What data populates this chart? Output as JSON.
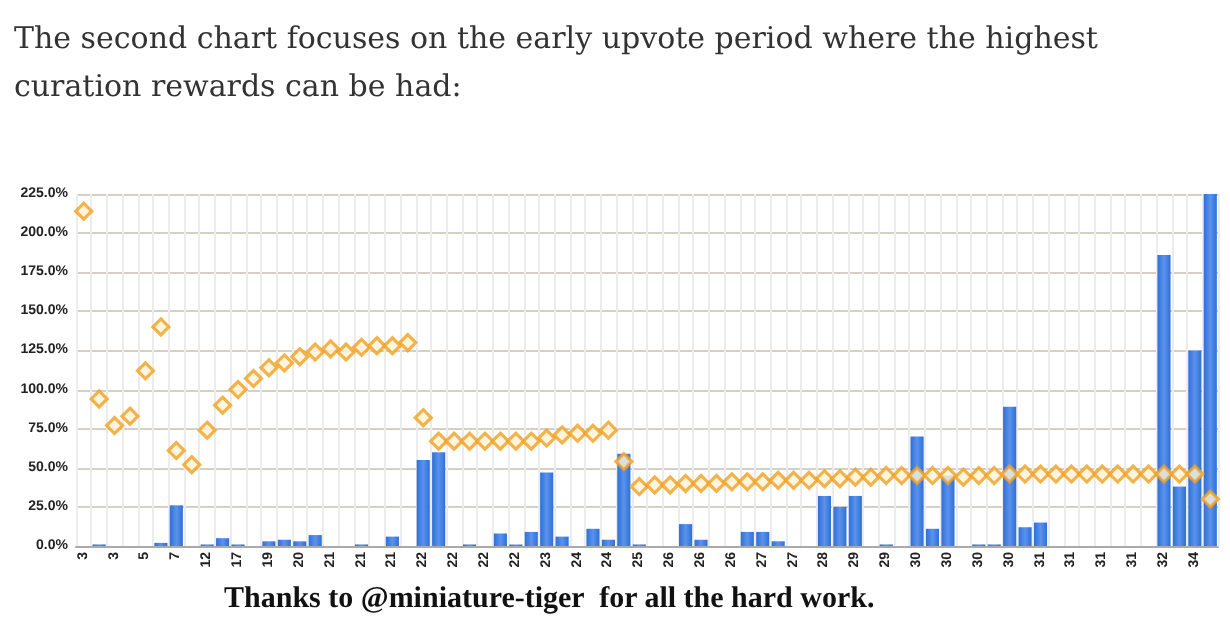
{
  "chart_data": {
    "type": "bar",
    "title": "The second chart focuses on the early upvote period where the highest curation rewards can be had:",
    "annotations": [
      "Thanks to @miniature-tiger  for all the hard work."
    ],
    "categories": [
      "3",
      null,
      "3",
      null,
      "5",
      null,
      "7",
      null,
      "12",
      null,
      "17",
      null,
      "19",
      null,
      "20",
      null,
      "21",
      null,
      "21",
      null,
      "21",
      null,
      "22",
      null,
      "22",
      null,
      "22",
      null,
      "22",
      null,
      "23",
      null,
      "24",
      null,
      "24",
      null,
      "25",
      null,
      "26",
      null,
      "26",
      null,
      "26",
      null,
      "27",
      null,
      "27",
      null,
      "28",
      null,
      "29",
      null,
      "29",
      null,
      "30",
      null,
      "30",
      null,
      "30",
      null,
      "30",
      null,
      "31",
      null,
      "31",
      null,
      "31",
      null,
      "31",
      null,
      "32",
      null,
      "34",
      null
    ],
    "series": [
      {
        "color": "#2e6fd8",
        "values": [
          null,
          1,
          null,
          null,
          null,
          2,
          26,
          null,
          1,
          5,
          1,
          null,
          3,
          4,
          3,
          7,
          null,
          null,
          1,
          null,
          6,
          null,
          55,
          60,
          null,
          1,
          null,
          8,
          1,
          9,
          47,
          6,
          null,
          11,
          4,
          59,
          1,
          null,
          null,
          14,
          4,
          null,
          null,
          9,
          9,
          3,
          null,
          null,
          32,
          25,
          32,
          null,
          1,
          null,
          70,
          11,
          45,
          null,
          1,
          1,
          89,
          12,
          15,
          null,
          null,
          null,
          null,
          null,
          null,
          null,
          186,
          38,
          125,
          225
        ]
      },
      {
        "type": "scatter",
        "color": "#f0a020",
        "values": [
          214,
          94,
          77,
          83,
          112,
          140,
          61,
          52,
          74,
          90,
          100,
          107,
          114,
          117,
          121,
          124,
          126,
          124,
          127,
          128,
          128,
          130,
          82,
          67,
          67,
          67,
          67,
          67,
          67,
          67,
          69,
          71,
          72,
          72,
          74,
          54,
          38,
          39,
          39,
          40,
          40,
          40,
          41,
          41,
          41,
          42,
          42,
          42,
          43,
          43,
          44,
          44,
          45,
          45,
          45,
          45,
          45,
          44,
          45,
          45,
          46,
          46,
          46,
          46,
          46,
          46,
          46,
          46,
          46,
          46,
          46,
          46,
          46,
          30
        ]
      }
    ],
    "ylim": [
      0,
      225
    ],
    "yticks": [
      {
        "value": 0,
        "label": "0.0%"
      },
      {
        "value": 25,
        "label": "25.0%"
      },
      {
        "value": 50,
        "label": "50.0%"
      },
      {
        "value": 75,
        "label": "75.0%"
      },
      {
        "value": 100,
        "label": "100.0%"
      },
      {
        "value": 125,
        "label": "125.0%"
      },
      {
        "value": 150,
        "label": "150.0%"
      },
      {
        "value": 175,
        "label": "175.0%"
      },
      {
        "value": 200,
        "label": "200.0%"
      },
      {
        "value": 225,
        "label": "225.0%"
      }
    ],
    "grid": true,
    "marker": "diamond"
  }
}
